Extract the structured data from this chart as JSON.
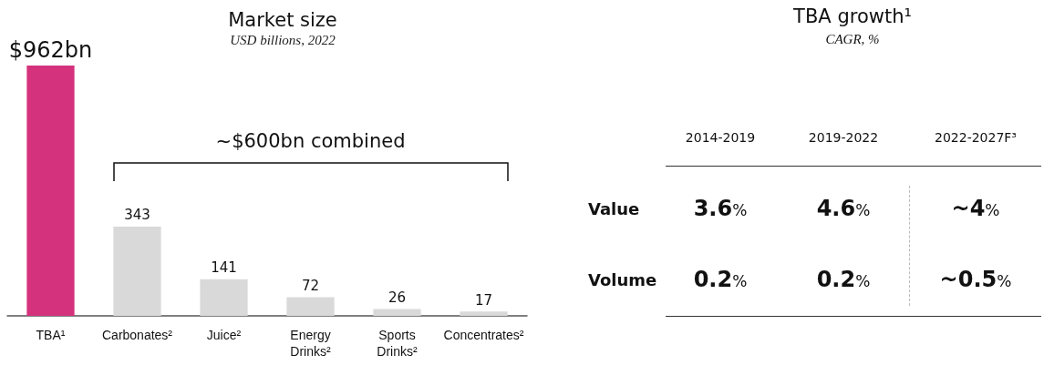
{
  "chart_data": [
    {
      "type": "bar",
      "title": "Market size",
      "subtitle": "USD billions, 2022",
      "categories": [
        "TBA¹",
        "Carbonates²",
        "Juice²",
        "Energy Drinks²",
        "Sports Drinks²",
        "Concentrates²"
      ],
      "values": [
        962,
        343,
        141,
        72,
        26,
        17
      ],
      "colors": [
        "#d4327c",
        "#d9d9d9",
        "#d9d9d9",
        "#d9d9d9",
        "#d9d9d9",
        "#d9d9d9"
      ],
      "value_labels": [
        "$962bn",
        "343",
        "141",
        "72",
        "26",
        "17"
      ],
      "annotations": [
        "~$600bn combined"
      ]
    },
    {
      "type": "other",
      "title": "TBA growth¹",
      "subtitle": "CAGR, %",
      "categories": [
        "2014-2019",
        "2019-2022",
        "2022-2027F³"
      ],
      "y_categories": [
        "Value",
        "Volume"
      ],
      "cell_labels": [
        [
          "3.6%",
          "4.6%",
          "~4%"
        ],
        [
          "0.2%",
          "0.2%",
          "~0.5%"
        ]
      ]
    }
  ]
}
